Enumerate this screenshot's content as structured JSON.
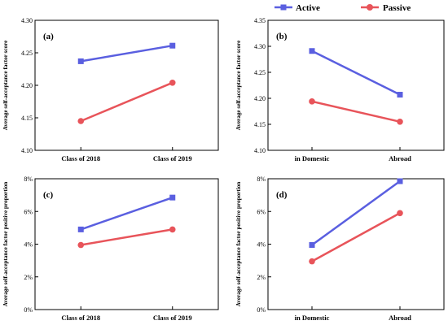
{
  "legend": {
    "position": "top-right",
    "items": [
      {
        "label": "Active",
        "color": "#5a5fe0",
        "marker": "square"
      },
      {
        "label": "Passive",
        "color": "#e8545a",
        "marker": "circle"
      }
    ]
  },
  "chart_data": [
    {
      "panel": "(a)",
      "type": "line",
      "categories": [
        "Class of 2018",
        "Class of 2019"
      ],
      "series": [
        {
          "name": "Active",
          "values": [
            4.237,
            4.261
          ]
        },
        {
          "name": "Passive",
          "values": [
            4.145,
            4.204
          ]
        }
      ],
      "ylabel": "Average self-acceptance factor score",
      "ylim": [
        4.1,
        4.3
      ],
      "yticks": [
        4.1,
        4.15,
        4.2,
        4.25,
        4.3
      ],
      "ytick_labels": [
        "4.10",
        "4.15",
        "4.20",
        "4.25",
        "4.30"
      ]
    },
    {
      "panel": "(b)",
      "type": "line",
      "categories": [
        "in Domestic",
        "Abroad"
      ],
      "series": [
        {
          "name": "Active",
          "values": [
            4.291,
            4.207
          ]
        },
        {
          "name": "Passive",
          "values": [
            4.194,
            4.155
          ]
        }
      ],
      "ylabel": "Average self-acceptance factor score",
      "ylim": [
        4.1,
        4.35
      ],
      "yticks": [
        4.1,
        4.15,
        4.2,
        4.25,
        4.3,
        4.35
      ],
      "ytick_labels": [
        "4.10",
        "4.15",
        "4.20",
        "4.25",
        "4.30",
        "4.35"
      ]
    },
    {
      "panel": "(c)",
      "type": "line",
      "categories": [
        "Class of 2018",
        "Class of 2019"
      ],
      "series": [
        {
          "name": "Active",
          "values": [
            4.9,
            6.85
          ]
        },
        {
          "name": "Passive",
          "values": [
            3.95,
            4.9
          ]
        }
      ],
      "ylabel": "Average self-acceptance factor positive proportion",
      "ylim": [
        0,
        8
      ],
      "yticks": [
        0,
        2,
        4,
        6,
        8
      ],
      "ytick_labels": [
        "0%",
        "2%",
        "4%",
        "6%",
        "8%"
      ]
    },
    {
      "panel": "(d)",
      "type": "line",
      "categories": [
        "in Domestic",
        "Abroad"
      ],
      "series": [
        {
          "name": "Active",
          "values": [
            3.95,
            7.85
          ]
        },
        {
          "name": "Passive",
          "values": [
            2.95,
            5.9
          ]
        }
      ],
      "ylabel": "Average self-acceptance factor positive proportion",
      "ylim": [
        0,
        8
      ],
      "yticks": [
        0,
        2,
        4,
        6,
        8
      ],
      "ytick_labels": [
        "0%",
        "2%",
        "4%",
        "6%",
        "8%"
      ]
    }
  ]
}
